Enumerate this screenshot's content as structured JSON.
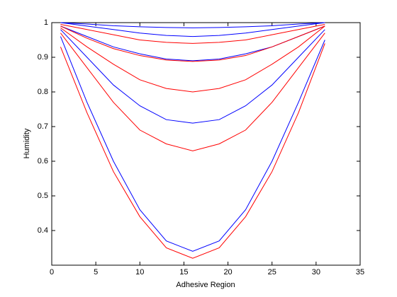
{
  "chart_data": {
    "type": "line",
    "xlabel": "Adhesive Region",
    "ylabel": "Humidity",
    "x": [
      1,
      4,
      7,
      10,
      13,
      16,
      19,
      22,
      25,
      28,
      31
    ],
    "series": [
      {
        "color": "#0000ff",
        "values": [
          1.0,
          0.996,
          0.991,
          0.988,
          0.986,
          0.985,
          0.986,
          0.988,
          0.991,
          0.996,
          1.0
        ]
      },
      {
        "color": "#0000ff",
        "values": [
          1.0,
          0.99,
          0.98,
          0.97,
          0.963,
          0.96,
          0.963,
          0.97,
          0.98,
          0.99,
          1.0
        ]
      },
      {
        "color": "#ff0000",
        "values": [
          0.995,
          0.98,
          0.965,
          0.95,
          0.943,
          0.94,
          0.943,
          0.95,
          0.965,
          0.98,
          0.995
        ]
      },
      {
        "color": "#0000ff",
        "values": [
          0.99,
          0.96,
          0.93,
          0.91,
          0.895,
          0.89,
          0.895,
          0.91,
          0.93,
          0.96,
          0.99
        ]
      },
      {
        "color": "#ff0000",
        "values": [
          0.99,
          0.955,
          0.925,
          0.905,
          0.892,
          0.888,
          0.892,
          0.905,
          0.93,
          0.96,
          0.99
        ]
      },
      {
        "color": "#ff0000",
        "values": [
          0.985,
          0.93,
          0.88,
          0.835,
          0.81,
          0.8,
          0.81,
          0.835,
          0.88,
          0.93,
          0.99
        ]
      },
      {
        "color": "#0000ff",
        "values": [
          0.98,
          0.9,
          0.82,
          0.76,
          0.72,
          0.71,
          0.72,
          0.76,
          0.82,
          0.9,
          0.98
        ]
      },
      {
        "color": "#ff0000",
        "values": [
          0.97,
          0.87,
          0.77,
          0.69,
          0.65,
          0.63,
          0.65,
          0.69,
          0.77,
          0.87,
          0.97
        ]
      },
      {
        "color": "#0000ff",
        "values": [
          0.96,
          0.77,
          0.6,
          0.46,
          0.37,
          0.34,
          0.37,
          0.46,
          0.6,
          0.77,
          0.95
        ]
      },
      {
        "color": "#ff0000",
        "values": [
          0.93,
          0.74,
          0.57,
          0.44,
          0.35,
          0.32,
          0.35,
          0.44,
          0.57,
          0.74,
          0.94
        ]
      }
    ],
    "xlim": [
      0,
      35
    ],
    "xticks": [
      0,
      5,
      10,
      15,
      20,
      25,
      30,
      35
    ],
    "ylim": [
      0.3,
      1
    ],
    "yticks": [
      0.4,
      0.5,
      0.6,
      0.7,
      0.8,
      0.9,
      1
    ],
    "grid": false
  }
}
